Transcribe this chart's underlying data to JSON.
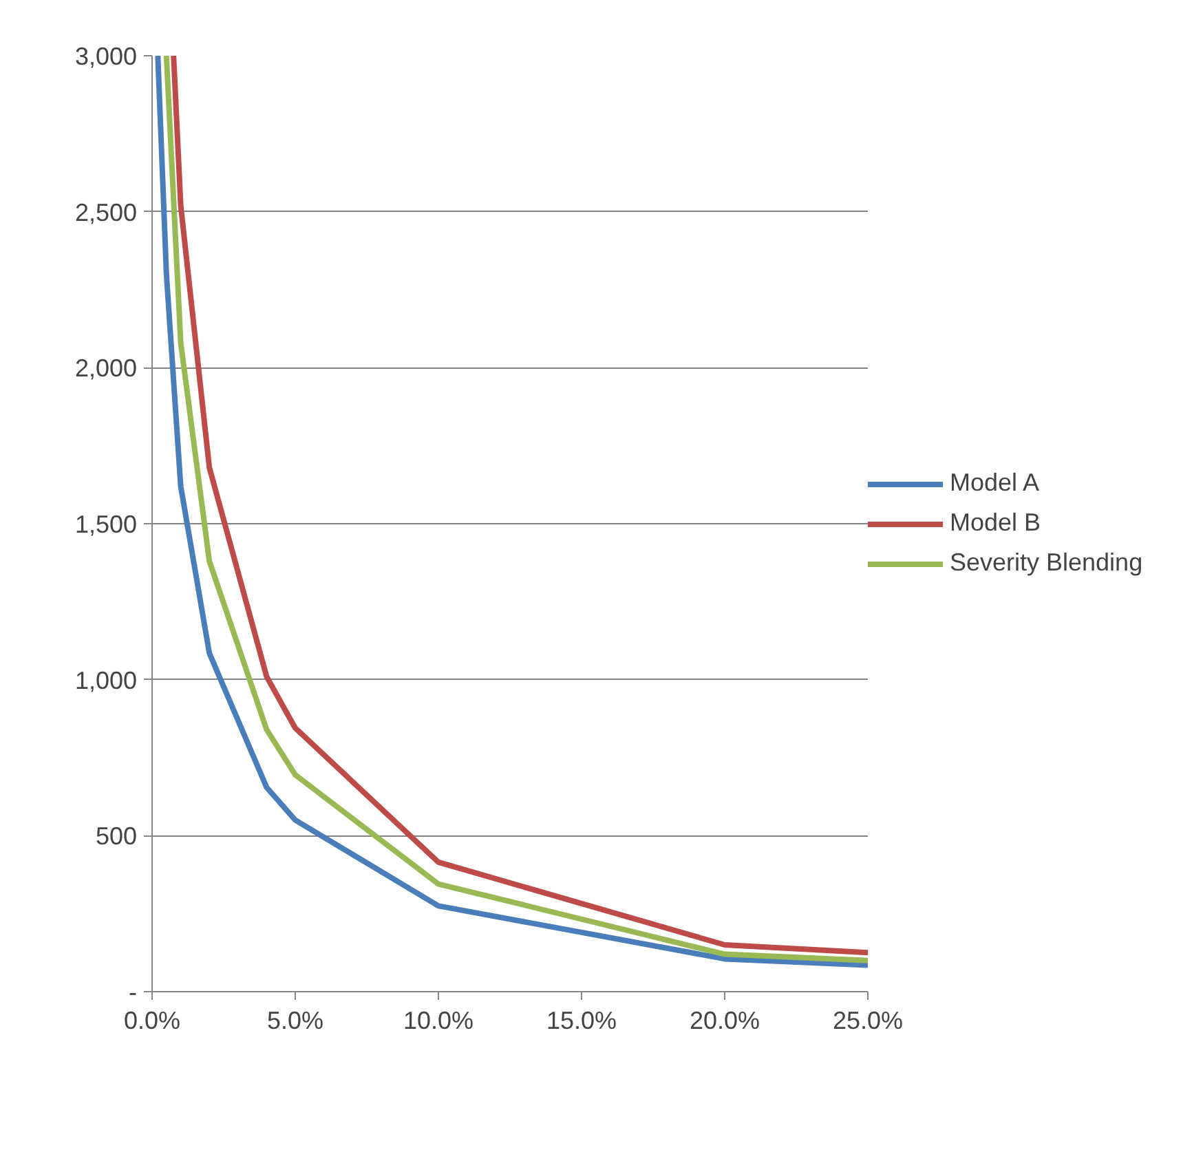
{
  "chart_data": {
    "type": "line",
    "xlim": [
      0,
      25
    ],
    "ylim": [
      0,
      3000
    ],
    "xticks": [
      {
        "value": 0,
        "label": "0.0%"
      },
      {
        "value": 5,
        "label": "5.0%"
      },
      {
        "value": 10,
        "label": "10.0%"
      },
      {
        "value": 15,
        "label": "15.0%"
      },
      {
        "value": 20,
        "label": "20.0%"
      },
      {
        "value": 25,
        "label": "25.0%"
      }
    ],
    "yticks": [
      {
        "value": 0,
        "label": "-"
      },
      {
        "value": 500,
        "label": "500"
      },
      {
        "value": 1000,
        "label": "1,000"
      },
      {
        "value": 1500,
        "label": "1,500"
      },
      {
        "value": 2000,
        "label": "2,000"
      },
      {
        "value": 2500,
        "label": "2,500"
      },
      {
        "value": 3000,
        "label": "3,000"
      }
    ],
    "grid": "y",
    "legend": "right",
    "line_style": "solid",
    "marker": "none",
    "series": [
      {
        "name": "Model A",
        "color": "#4a7ebb",
        "x": [
          0.2,
          0.5,
          1,
          2,
          4,
          5,
          10,
          20,
          25
        ],
        "values": [
          3000,
          2300,
          1620,
          1085,
          655,
          550,
          275,
          105,
          85
        ]
      },
      {
        "name": "Model B",
        "color": "#be4b48",
        "x": [
          0.75,
          1,
          2,
          4,
          5,
          10,
          20,
          25
        ],
        "values": [
          3000,
          2520,
          1680,
          1010,
          845,
          415,
          150,
          125
        ]
      },
      {
        "name": "Severity Blending",
        "color": "#98b954",
        "x": [
          0.5,
          1,
          2,
          4,
          5,
          10,
          20,
          25
        ],
        "values": [
          3000,
          2080,
          1380,
          840,
          695,
          345,
          120,
          100
        ]
      }
    ]
  }
}
